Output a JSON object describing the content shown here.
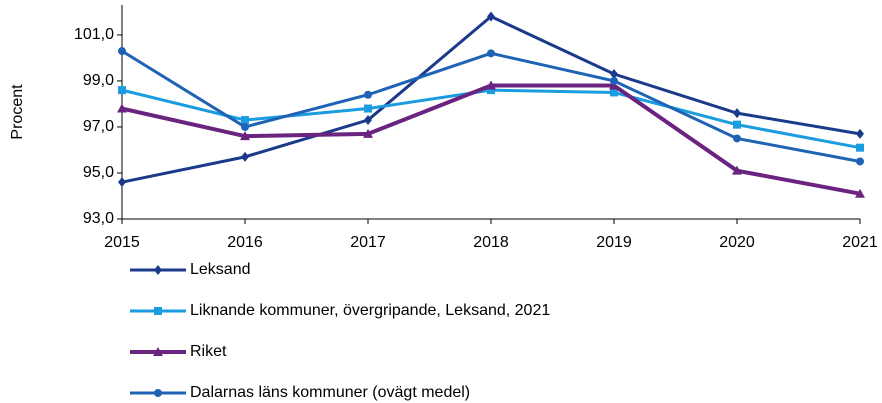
{
  "chart_data": {
    "type": "line",
    "y_label": "Procent",
    "categories": [
      "2015",
      "2016",
      "2017",
      "2018",
      "2019",
      "2020",
      "2021"
    ],
    "series": [
      {
        "name": "Leksand",
        "color": "#1a3a8a",
        "marker": "diamond",
        "values": [
          94.6,
          95.7,
          97.3,
          101.8,
          99.3,
          97.6,
          96.7
        ]
      },
      {
        "name": "Liknande kommuner, övergripande, Leksand, 2021",
        "color": "#1b9ce0",
        "marker": "square",
        "values": [
          98.6,
          97.3,
          97.8,
          98.6,
          98.5,
          97.1,
          96.1
        ]
      },
      {
        "name": "Riket",
        "color": "#6b2380",
        "marker": "triangle",
        "values": [
          97.8,
          96.6,
          96.7,
          98.8,
          98.8,
          95.1,
          94.1
        ]
      },
      {
        "name": "Dalarnas läns kommuner (ovägt medel)",
        "color": "#1f63b5",
        "marker": "circle",
        "values": [
          100.3,
          97.0,
          98.4,
          100.2,
          99.0,
          96.5,
          95.5
        ]
      }
    ],
    "ylim": [
      93,
      102.3
    ],
    "yticks": [
      {
        "value": 93,
        "label": "93,0"
      },
      {
        "value": 95,
        "label": "95,0"
      },
      {
        "value": 97,
        "label": "97,0"
      },
      {
        "value": 99,
        "label": "99,0"
      },
      {
        "value": 101,
        "label": "101,0"
      }
    ],
    "legend": "bottom"
  }
}
